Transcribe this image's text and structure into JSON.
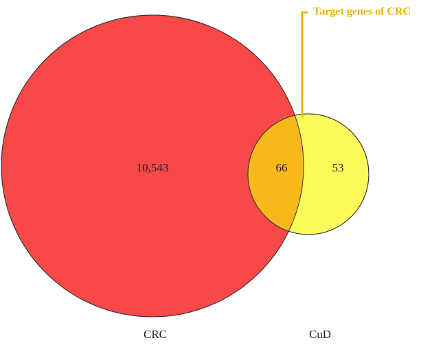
{
  "sets": [
    {
      "label": "CRC"
    },
    {
      "label": "CuD"
    }
  ],
  "regions": [
    {
      "label": "10,543"
    },
    {
      "label": "66"
    },
    {
      "label": "53"
    }
  ],
  "annotation": "Target genes of CRC"
}
